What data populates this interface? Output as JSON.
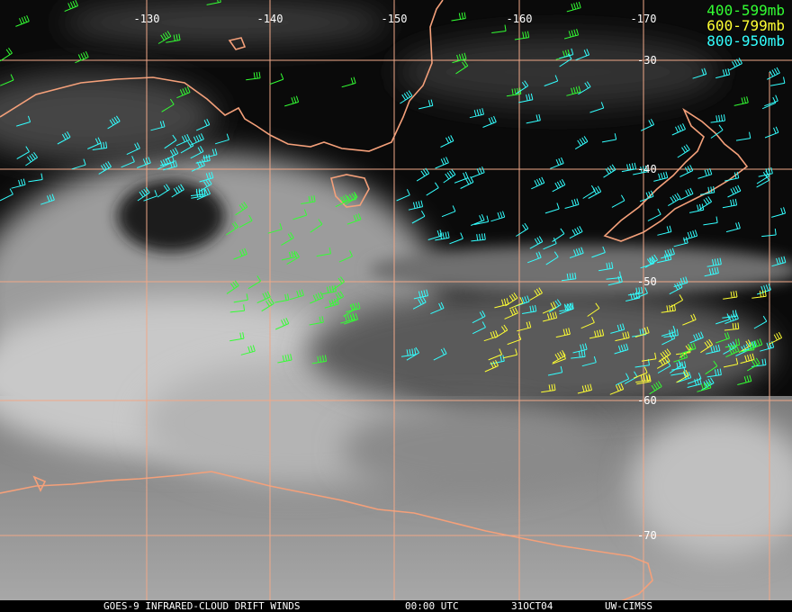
{
  "map": {
    "longitude_labels": [
      "-130",
      "-140",
      "-150",
      "-160",
      "-170"
    ],
    "latitude_labels": [
      "-30",
      "-40",
      "-50",
      "-60",
      "-70"
    ],
    "legend": [
      {
        "label": "400-599mb",
        "color": "#33ff33"
      },
      {
        "label": "600-799mb",
        "color": "#ffff33"
      },
      {
        "label": "800-950mb",
        "color": "#33ffff"
      }
    ],
    "footer": [
      "GOES-9 INFRARED-CLOUD DRIFT WINDS",
      "00:00 UTC",
      "31OCT04",
      "UW-CIMSS"
    ]
  }
}
